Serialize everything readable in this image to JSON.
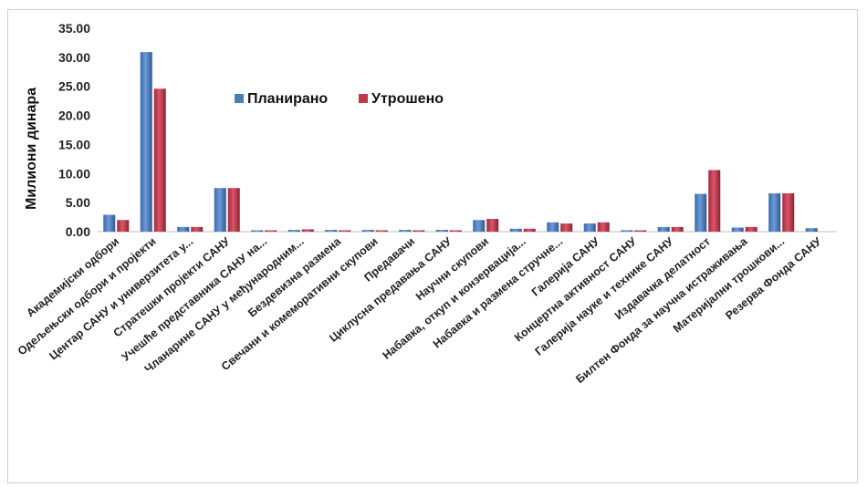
{
  "chart_data": {
    "type": "bar",
    "title": "",
    "xlabel": "",
    "ylabel": "Милиони динара",
    "ylim": [
      0,
      35
    ],
    "yticks": [
      "0.00",
      "5.00",
      "10.00",
      "15.00",
      "20.00",
      "25.00",
      "30.00",
      "35.00"
    ],
    "grid": false,
    "legend_position": "inside-top-center",
    "categories": [
      "Академијски одбори",
      "Одељењски одбори и пројекти",
      "Центар САНУ и универзитета у...",
      "Стратешки пројекти САНУ",
      "Учешће представника САНУ на...",
      "Чланарине САНУ у међународним...",
      "Бездевизна размена",
      "Свечани и комеморативни скупови",
      "Предавачи",
      "Циклусна предавања САНУ",
      "Научни скупови",
      "Набавка, откуп и конзервација...",
      "Набавка и размена стручне...",
      "Галерија САНУ",
      "Концертна активност САНУ",
      "Галерија науке и технике САНУ",
      "Издавачка делатност",
      "Билтен Фонда за научна истраживања",
      "Материјални трошкови...",
      "Резерва Фонда САНУ"
    ],
    "series": [
      {
        "name": "Планирано",
        "color": "#4a7ebb",
        "values": [
          2.9,
          30.9,
          0.8,
          7.5,
          0.05,
          0.3,
          0.3,
          0.3,
          0.3,
          0.3,
          2.0,
          0.5,
          1.6,
          1.4,
          0.2,
          0.8,
          6.5,
          0.7,
          6.6,
          0.6
        ]
      },
      {
        "name": "Утрошено",
        "color": "#c0394b",
        "values": [
          2.0,
          24.6,
          0.8,
          7.5,
          0.05,
          0.4,
          0.2,
          0.2,
          0.1,
          0.2,
          2.2,
          0.5,
          1.4,
          1.6,
          0.1,
          0.8,
          10.6,
          0.8,
          6.6,
          0.0
        ]
      }
    ]
  }
}
